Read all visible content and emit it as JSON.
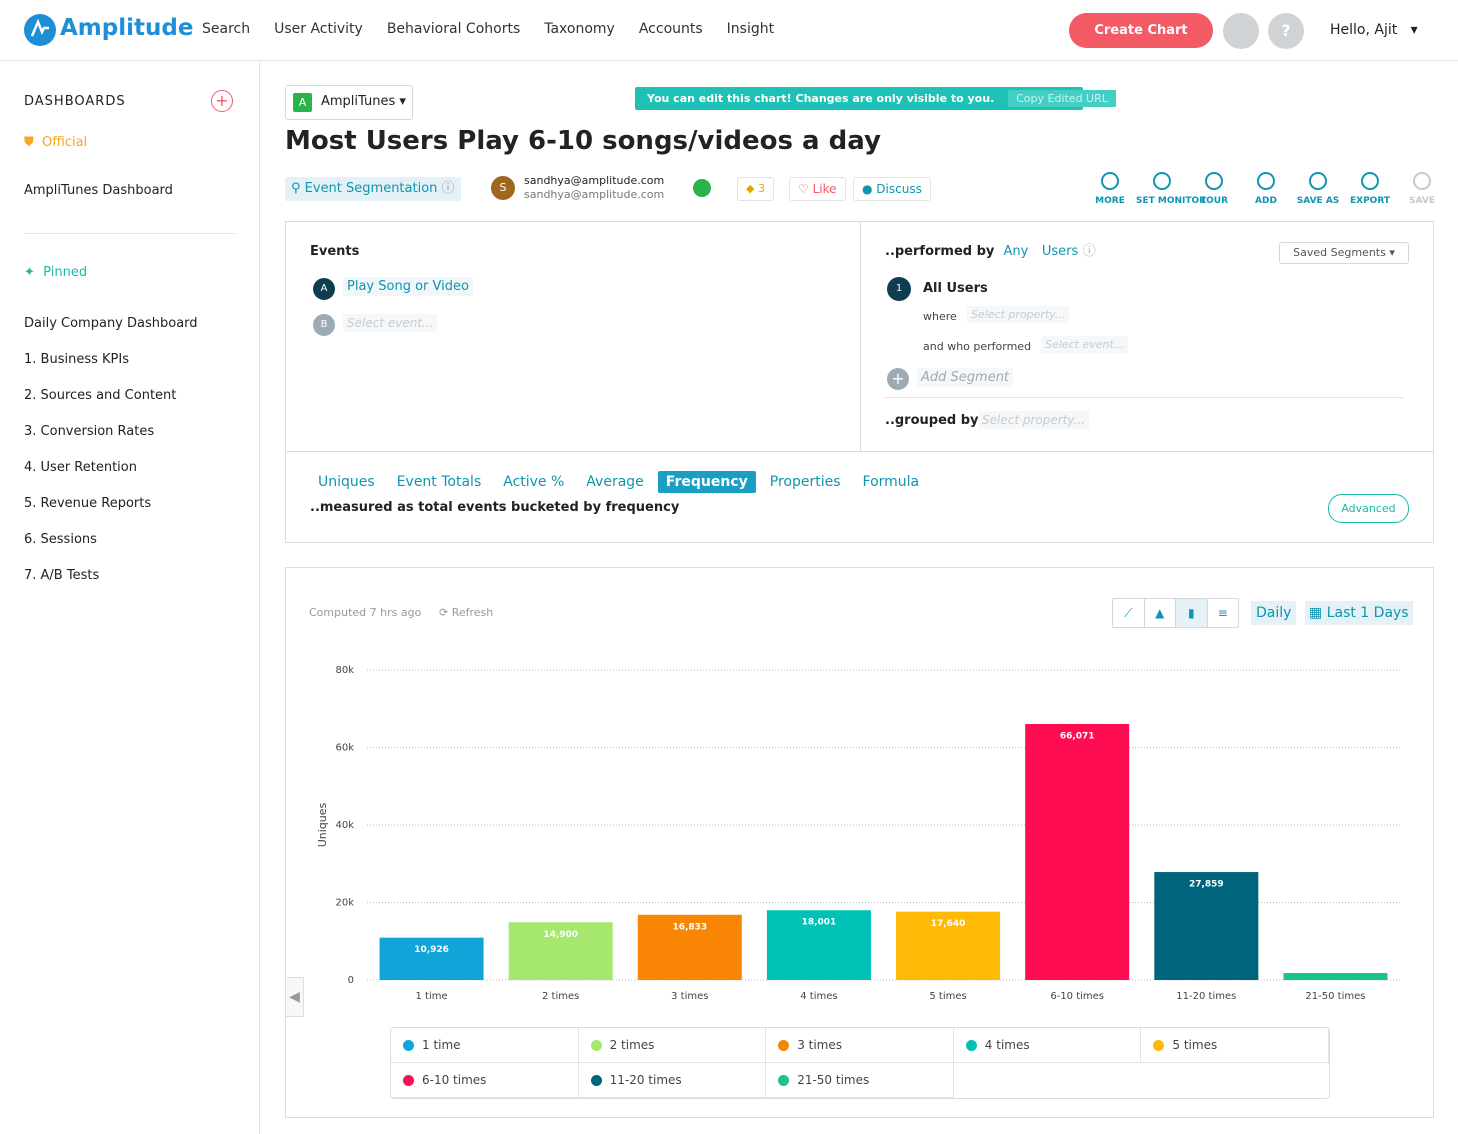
{
  "nav": {
    "logo": "Amplitude",
    "items": [
      "Search",
      "User Activity",
      "Behavioral Cohorts",
      "Taxonomy",
      "Accounts",
      "Insight"
    ],
    "create_chart": "Create Chart",
    "greeting": "Hello, Ajit"
  },
  "sidebar": {
    "dashboards": "DASHBOARDS",
    "official": "Official",
    "official_item": "AmpliTunes Dashboard",
    "pinned": "Pinned",
    "pinned_items": [
      "Daily Company Dashboard",
      "1. Business KPIs",
      "2. Sources and Content",
      "3. Conversion Rates",
      "4. User Retention",
      "5. Revenue Reports",
      "6. Sessions",
      "7. A/B Tests"
    ]
  },
  "header": {
    "project_initial": "A",
    "project": "AmpliTunes",
    "notice": "You can edit this chart! Changes are only visible to you.",
    "copy_url": "Copy Edited URL",
    "title": "Most Users Play 6-10 songs/videos a day",
    "chart_kind": "Event Segmentation",
    "owner_initial": "S",
    "owner_email": "sandhya@amplitude.com",
    "owner_email_2": "sandhya@amplitude.com",
    "count": "3",
    "like": "Like",
    "discuss": "Discuss",
    "actions": [
      "MORE",
      "SET MONITOR",
      "TOUR",
      "ADD",
      "SAVE AS",
      "EXPORT",
      "SAVE"
    ]
  },
  "events": {
    "heading": "Events",
    "items": [
      {
        "letter": "A",
        "label": "Play Song or Video"
      },
      {
        "letter": "B",
        "label": "Select event..."
      }
    ]
  },
  "segment": {
    "performed_by": "..performed by",
    "any": "Any",
    "users": "Users",
    "saved_segments": "Saved Segments",
    "number": "1",
    "name": "All Users",
    "where": "where",
    "where_placeholder": "Select property...",
    "and_who": "and who performed",
    "and_who_placeholder": "Select event...",
    "add_segment": "Add Segment",
    "grouped_by": "..grouped by",
    "grouped_placeholder": "Select property..."
  },
  "measure": {
    "tabs": [
      "Uniques",
      "Event Totals",
      "Active %",
      "Average",
      "Frequency",
      "Properties",
      "Formula"
    ],
    "description": "..measured as total events bucketed by frequency",
    "advanced": "Advanced"
  },
  "chart_panel": {
    "computed": "Computed 7 hrs ago",
    "refresh": "Refresh",
    "interval": "Daily",
    "range": "Last 1 Days"
  },
  "chart_data": {
    "type": "bar",
    "y_label": "Uniques",
    "categories": [
      "1 time",
      "2 times",
      "3 times",
      "4 times",
      "5 times",
      "6-10 times",
      "11-20 times",
      "21-50 times"
    ],
    "values": [
      10926,
      14900,
      16833,
      18001,
      17640,
      66071,
      27859,
      1800
    ],
    "value_labels": [
      "10,926",
      "14,900",
      "16,833",
      "18,001",
      "17,640",
      "66,071",
      "27,859",
      null
    ],
    "colors": [
      "#0fa5d8",
      "#a6e86e",
      "#f98505",
      "#00c1b5",
      "#ffba08",
      "#ff0d52",
      "#00647c",
      "#19c48c"
    ],
    "ylim": [
      0,
      80000
    ],
    "yticks": [
      0,
      {
        "value": 20000,
        "label": "20k"
      },
      {
        "value": 40000,
        "label": "40k"
      },
      {
        "value": 60000,
        "label": "60k"
      },
      {
        "value": 80000,
        "label": "80k"
      }
    ],
    "grid": true
  }
}
